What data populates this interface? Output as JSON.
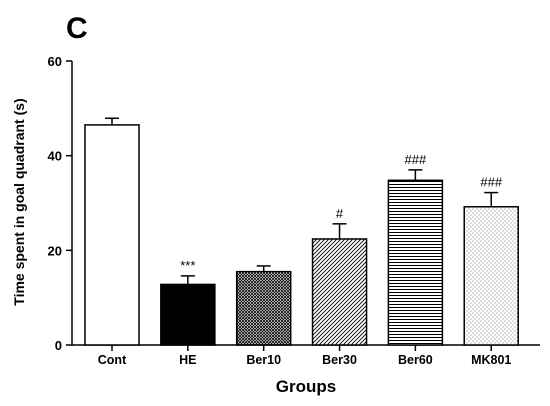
{
  "panel_label": "C",
  "chart_data": {
    "type": "bar",
    "xlabel": "Groups",
    "ylabel": "Time spent in goal quadrant (s)",
    "ylim": [
      0,
      60
    ],
    "yticks": [
      0,
      20,
      40,
      60
    ],
    "grid": false,
    "categories": [
      "Cont",
      "HE",
      "Ber10",
      "Ber30",
      "Ber60",
      "MK801"
    ],
    "values": [
      46.5,
      12.8,
      15.5,
      22.4,
      34.8,
      29.2
    ],
    "errors": [
      1.4,
      1.8,
      1.2,
      3.2,
      2.2,
      3.0
    ],
    "annotations": [
      "",
      "***",
      "",
      "#",
      "###",
      "###"
    ],
    "fills": [
      "white",
      "solid-black",
      "crosshatch",
      "diagonal-stripes",
      "horizontal-stripes",
      "dots"
    ]
  }
}
